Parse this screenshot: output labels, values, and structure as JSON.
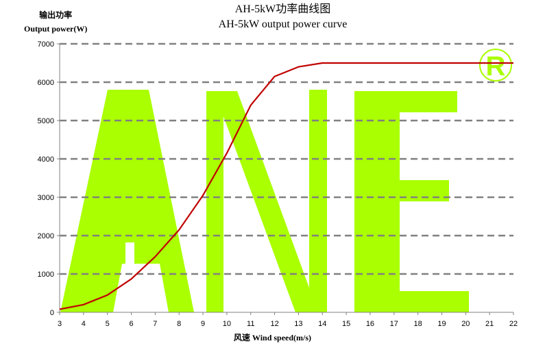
{
  "chart_data": {
    "type": "line",
    "title": "AH-5kW功率曲线图",
    "subtitle": "AH-5kW output power curve",
    "ylabel_cn": "输出功率",
    "ylabel": "Output power(W)",
    "xlabel": "风速  Wind speed(m/s)",
    "xlim": [
      3,
      22
    ],
    "ylim": [
      0,
      7000
    ],
    "x_ticks": [
      3,
      4,
      5,
      6,
      7,
      8,
      9,
      10,
      11,
      12,
      13,
      14,
      15,
      16,
      17,
      18,
      19,
      20,
      21,
      22
    ],
    "y_ticks": [
      0,
      1000,
      2000,
      3000,
      4000,
      5000,
      6000,
      7000
    ],
    "grid": "horizontal dashed",
    "series": [
      {
        "color": "#c00000",
        "x": [
          3,
          4,
          5,
          6,
          7,
          8,
          9,
          10,
          11,
          12,
          13,
          14,
          15,
          16,
          17,
          18,
          19,
          20,
          21,
          22
        ],
        "y": [
          80,
          200,
          450,
          870,
          1450,
          2150,
          3050,
          4150,
          5400,
          6150,
          6400,
          6500,
          6500,
          6500,
          6500,
          6500,
          6500,
          6500,
          6500,
          6500
        ]
      }
    ],
    "watermark": {
      "text": "ANE",
      "mark": "R",
      "color": "#aaff00"
    }
  }
}
